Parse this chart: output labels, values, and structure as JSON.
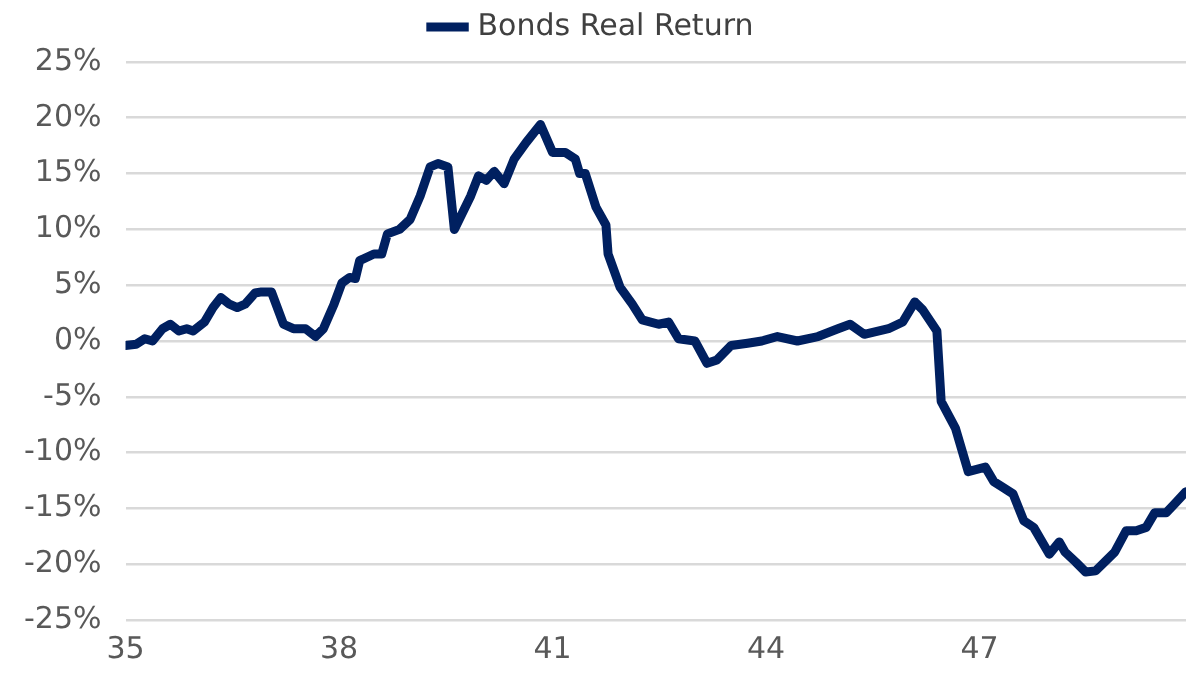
{
  "chart_data": {
    "type": "line",
    "legend": "top",
    "grid": "y",
    "marker": "none",
    "line_style": "solid",
    "xlim": [
      35,
      49.9
    ],
    "xticks": [
      35,
      38,
      41,
      44,
      47
    ],
    "ylim": [
      -25,
      25
    ],
    "yticks": [
      {
        "value": -25,
        "label": "-25%"
      },
      {
        "value": -20,
        "label": "-20%"
      },
      {
        "value": -15,
        "label": "-15%"
      },
      {
        "value": -10,
        "label": "-10%"
      },
      {
        "value": -5,
        "label": "-5%"
      },
      {
        "value": 0,
        "label": "0%"
      },
      {
        "value": 5,
        "label": "5%"
      },
      {
        "value": 10,
        "label": "10%"
      },
      {
        "value": 15,
        "label": "15%"
      },
      {
        "value": 20,
        "label": "20%"
      },
      {
        "value": 25,
        "label": "25%"
      }
    ],
    "series": [
      {
        "name": "Bonds Real Return",
        "color": "#002060",
        "x": [
          35,
          35.15,
          35.27,
          35.38,
          35.52,
          35.63,
          35.75,
          35.86,
          35.95,
          36.11,
          36.23,
          36.34,
          36.46,
          36.57,
          36.68,
          36.82,
          36.91,
          37.05,
          37.22,
          37.36,
          37.53,
          37.67,
          37.78,
          37.93,
          38.04,
          38.15,
          38.23,
          38.29,
          38.49,
          38.6,
          38.68,
          38.85,
          39.0,
          39.14,
          39.28,
          39.39,
          39.53,
          39.62,
          39.85,
          39.96,
          40.07,
          40.18,
          40.32,
          40.46,
          40.63,
          40.83,
          41.0,
          41.18,
          41.32,
          41.38,
          41.46,
          41.61,
          41.75,
          41.78,
          41.95,
          42.12,
          42.26,
          42.49,
          42.63,
          42.77,
          43.0,
          43.17,
          43.31,
          43.51,
          43.74,
          43.94,
          44.16,
          44.44,
          44.73,
          45.01,
          45.18,
          45.38,
          45.72,
          45.92,
          46.09,
          46.2,
          46.4,
          46.46,
          46.66,
          46.84,
          47.08,
          47.2,
          47.3,
          47.47,
          47.62,
          47.76,
          47.98,
          48.12,
          48.2,
          48.35,
          48.49,
          48.63,
          48.9,
          49.06,
          49.2,
          49.34,
          49.46,
          49.62,
          49.74,
          49.9
        ],
        "values": [
          -0.4,
          -0.3,
          0.2,
          0,
          1.1,
          1.5,
          0.9,
          1.1,
          0.9,
          1.7,
          3.0,
          3.9,
          3.3,
          3.0,
          3.3,
          4.3,
          4.4,
          4.4,
          1.5,
          1.1,
          1.1,
          0.4,
          1.1,
          3.3,
          5.2,
          5.7,
          5.6,
          7.2,
          7.8,
          7.8,
          9.6,
          10.0,
          10.9,
          13.0,
          15.6,
          15.9,
          15.6,
          10.0,
          13.0,
          14.8,
          14.4,
          15.2,
          14.1,
          16.3,
          17.8,
          19.4,
          16.9,
          16.9,
          16.3,
          15.0,
          15.0,
          12.0,
          10.4,
          7.8,
          4.8,
          3.3,
          1.9,
          1.5,
          1.7,
          0.2,
          0,
          -2.0,
          -1.7,
          -0.4,
          -0.2,
          0,
          0.4,
          0,
          0.4,
          1.1,
          1.5,
          0.6,
          1.1,
          1.7,
          3.5,
          2.8,
          0.9,
          -5.4,
          -7.8,
          -11.7,
          -11.3,
          -12.6,
          -13.0,
          -13.7,
          -16.1,
          -16.7,
          -19.1,
          -18.0,
          -18.9,
          -19.8,
          -20.7,
          -20.6,
          -18.9,
          -17.0,
          -17.0,
          -16.7,
          -15.4,
          -15.4,
          -14.6,
          -13.5
        ]
      }
    ]
  }
}
